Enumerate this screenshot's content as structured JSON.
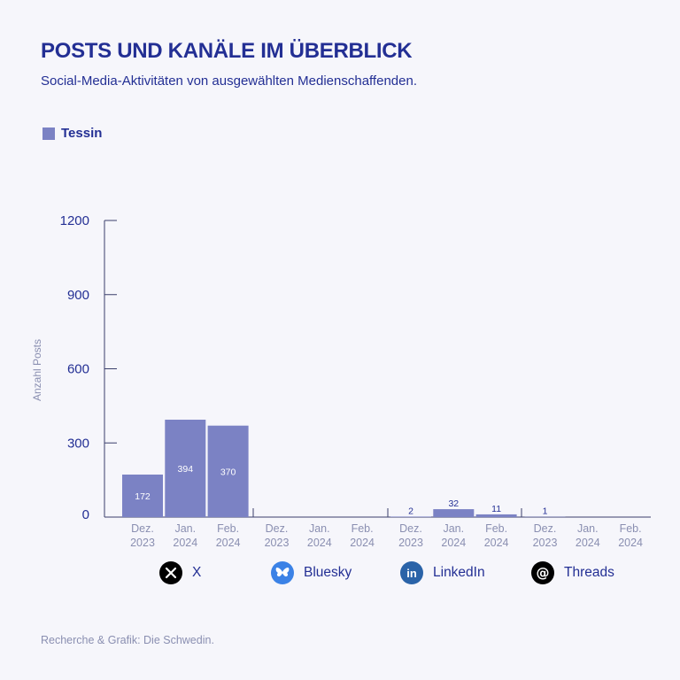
{
  "title": "POSTS UND KANÄLE IM ÜBERBLICK",
  "subtitle": "Social-Media-Aktivitäten von ausgewählten Medienschaffenden.",
  "legend": {
    "label": "Tessin",
    "color": "#7b82c4"
  },
  "footer": "Recherche & Grafik: Die Schwedin.",
  "colors": {
    "bar": "#7b82c4",
    "text": "#232f94",
    "muted": "#8a8fb1"
  },
  "platforms": [
    {
      "label": "X",
      "icon": "x-logo-icon",
      "color": "#000000"
    },
    {
      "label": "Bluesky",
      "icon": "bluesky-butterfly-icon",
      "color": "#3b82e6"
    },
    {
      "label": "LinkedIn",
      "icon": "linkedin-icon",
      "color": "#2a63a8"
    },
    {
      "label": "Threads",
      "icon": "threads-icon",
      "color": "#000000"
    }
  ],
  "chart_data": {
    "type": "bar",
    "ylabel": "Anzahl Posts",
    "ylim": [
      0,
      1200
    ],
    "yticks": [
      0,
      300,
      600,
      900,
      1200
    ],
    "series": [
      {
        "name": "Tessin"
      }
    ],
    "groups": [
      {
        "platform": "X",
        "months": [
          "Dez. 2023",
          "Jan. 2024",
          "Feb. 2024"
        ],
        "values": [
          172,
          394,
          370
        ],
        "labels": [
          "172",
          "394",
          "370"
        ]
      },
      {
        "platform": "Bluesky",
        "months": [
          "Dez. 2023",
          "Jan. 2024",
          "Feb. 2024"
        ],
        "values": [
          0,
          0,
          0
        ],
        "labels": [
          "",
          "",
          ""
        ]
      },
      {
        "platform": "LinkedIn",
        "months": [
          "Dez. 2023",
          "Jan. 2024",
          "Feb. 2024"
        ],
        "values": [
          2,
          32,
          11
        ],
        "labels": [
          "2",
          "32",
          "11"
        ]
      },
      {
        "platform": "Threads",
        "months": [
          "Dez. 2023",
          "Jan. 2024",
          "Feb. 2024"
        ],
        "values": [
          1,
          0,
          0
        ],
        "labels": [
          "1",
          "",
          ""
        ]
      }
    ],
    "grid": false,
    "legend_position": "top-left"
  }
}
